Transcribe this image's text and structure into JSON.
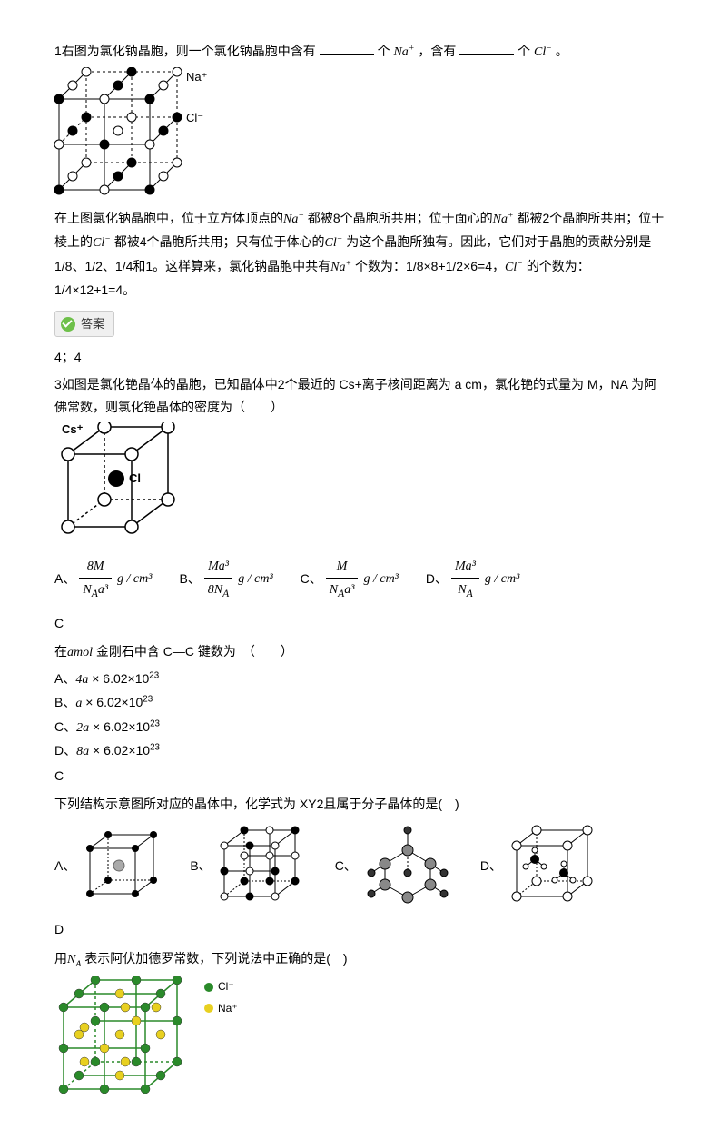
{
  "q1": {
    "intro_a": "1右图为氯化钠晶胞，则一个氯化钠晶胞中含有",
    "intro_b": "个",
    "na": "Na",
    "plus": "+",
    "intro_c": "，含有",
    "intro_d": "个",
    "cl": "Cl",
    "minus": "−",
    "intro_e": "。",
    "labels": {
      "na": "Na⁺",
      "cl": "Cl⁻"
    },
    "explain": "在上图氯化钠晶胞中，位于立方体顶点的",
    "explain2": "都被8个晶胞所共用；位于面心的",
    "explain3": "都被2个晶胞所共用；位于棱上的",
    "explain4": "都被4个晶胞所共用；只有位于体心的",
    "explain5": "为这个晶胞所独有。因此，它们对于晶胞的贡献分别是1/8、1/2、1/4和1。这样算来，氯化钠晶胞中共有",
    "explain6": "个数为：1/8×8+1/2×6=4，",
    "explain7": "的个数为：1/4×12+1=4。",
    "answer_label": "答案",
    "answer_text": "4；4"
  },
  "q3": {
    "text": "3如图是氯化铯晶体的晶胞，已知晶体中2个最近的 Cs+离子核间距离为 a cm，氯化铯的式量为 M，NA 为阿佛常数，则氯化铯晶体的密度为（　　）",
    "labels": {
      "cs": "Cs⁺",
      "cl": "Cl"
    },
    "opts": {
      "A": {
        "num": "8M",
        "den": "N_A a³"
      },
      "B": {
        "num": "Ma³",
        "den": "8N_A"
      },
      "C": {
        "num": "M",
        "den": "N_A a³"
      },
      "D": {
        "num": "Ma³",
        "den": "N_A"
      }
    },
    "unit": "g / cm³",
    "ans": "C"
  },
  "q4": {
    "pre": "在",
    "amol": "amol",
    "text": "金刚石中含 C—C 键数为　（　　）",
    "opts": {
      "A": "4a × 6.02×10²³",
      "B": "a × 6.02×10²³",
      "C": "2a × 6.02×10²³",
      "D": "8a × 6.02×10²³"
    },
    "ans": "C"
  },
  "q5": {
    "text": "下列结构示意图所对应的晶体中，化学式为 XY2且属于分子晶体的是(　)",
    "opts": [
      "A、",
      "B、",
      "C、",
      "D、"
    ],
    "ans": "D"
  },
  "q6": {
    "pre": "用",
    "na": "N_A",
    "text": "表示阿伏加德罗常数，下列说法中正确的是(　)",
    "legend": {
      "cl": "Cl⁻",
      "na": "Na⁺"
    },
    "colors": {
      "cl": "#2a8a2a",
      "na": "#e8d020"
    }
  }
}
